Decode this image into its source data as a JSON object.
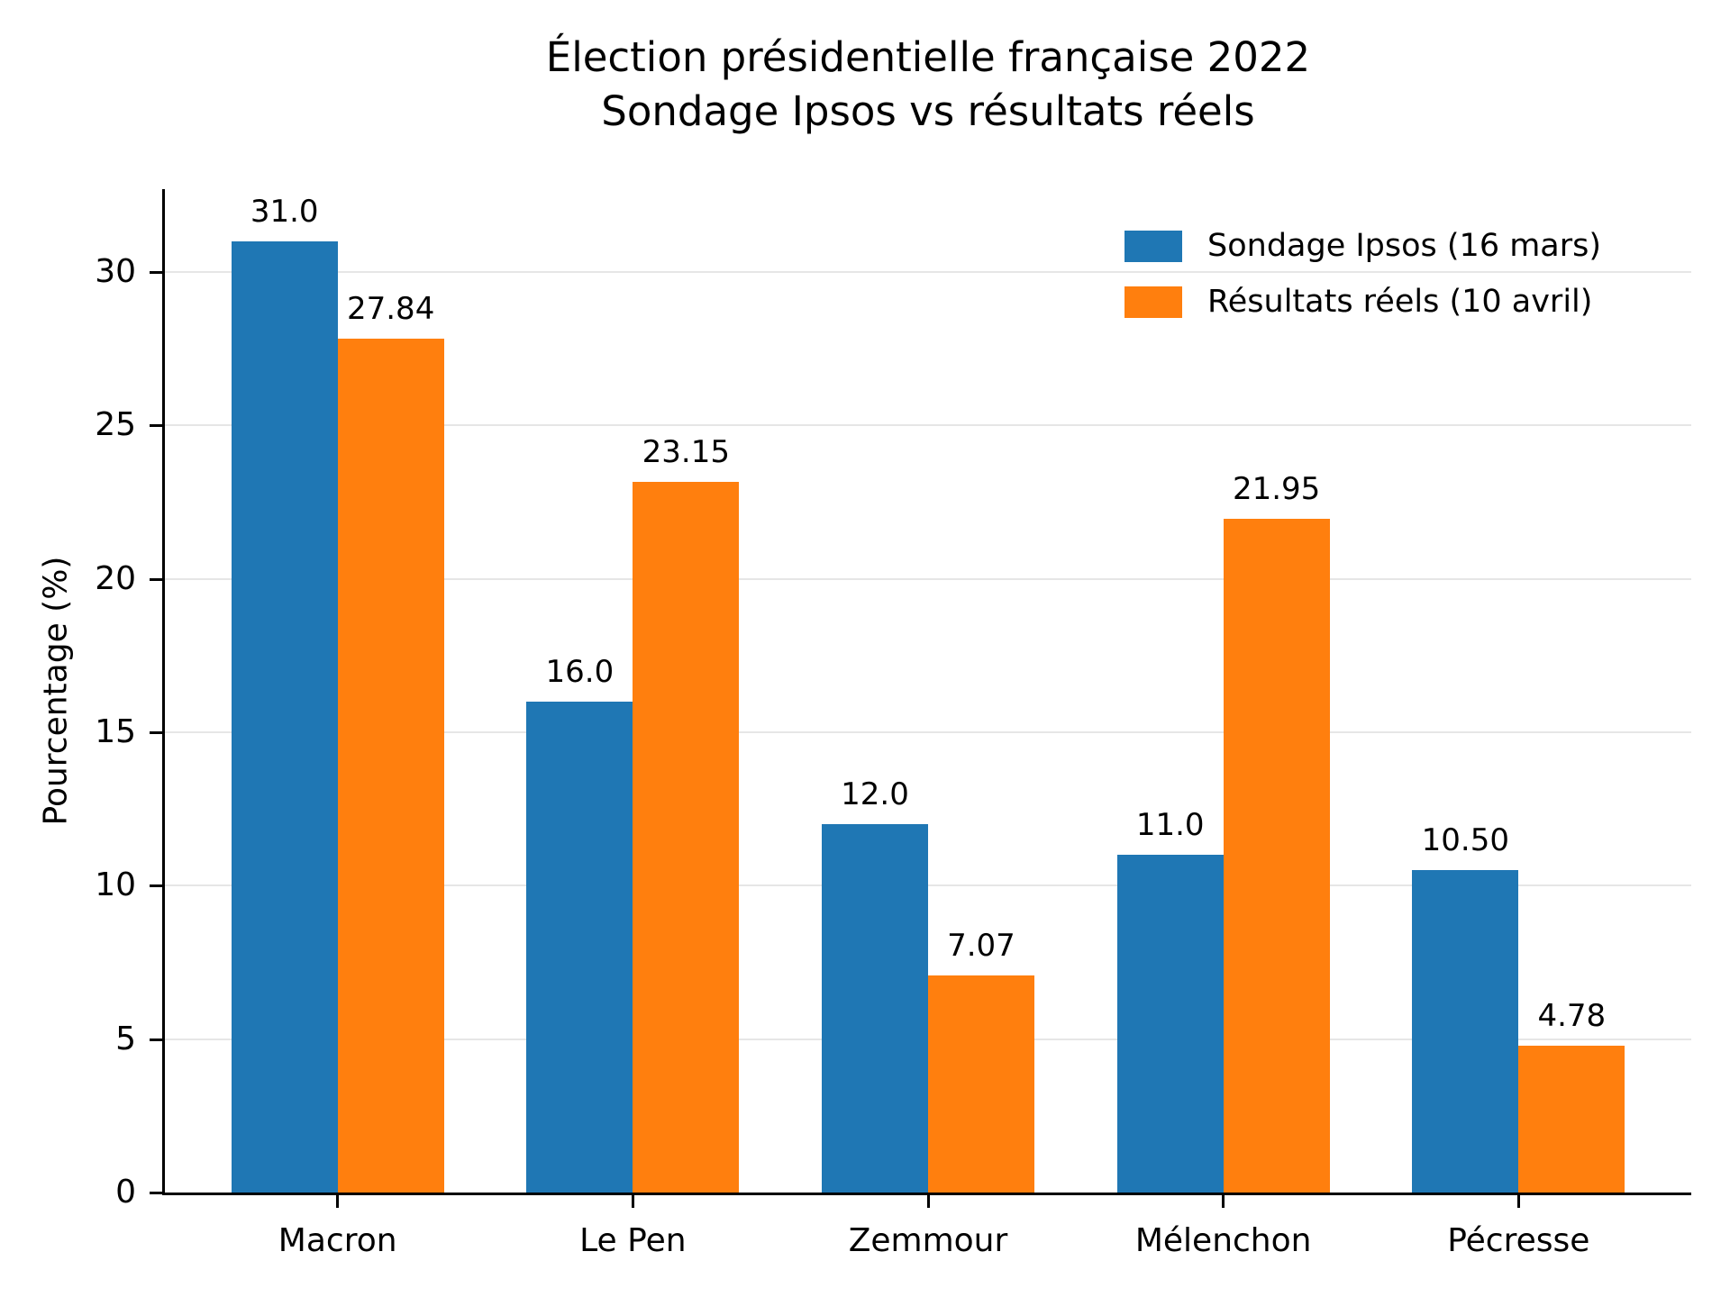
{
  "title": {
    "line1": "Élection présidentielle française 2022",
    "line2": "Sondage Ipsos vs résultats réels"
  },
  "ylabel": "Pourcentage (%)",
  "legend": [
    {
      "label": "Sondage Ipsos (16 mars)",
      "color": "#1f77b4"
    },
    {
      "label": "Résultats réels (10 avril)",
      "color": "#ff7f0e"
    }
  ],
  "colors": {
    "series_blue": "#1f77b4",
    "series_orange": "#ff7f0e",
    "gridline": "#e6e6e6",
    "axis": "#000000"
  },
  "chart_data": {
    "type": "bar",
    "title": "Élection présidentielle française 2022\nSondage Ipsos vs résultats réels",
    "xlabel": "",
    "ylabel": "Pourcentage (%)",
    "categories": [
      "Macron",
      "Le Pen",
      "Zemmour",
      "Mélenchon",
      "Pécresse"
    ],
    "series": [
      {
        "name": "Sondage Ipsos (16 mars)",
        "color": "#1f77b4",
        "values": [
          31.0,
          16.0,
          12.0,
          11.0,
          10.5
        ],
        "value_labels": [
          "31.0",
          "16.0",
          "12.0",
          "11.0",
          "10.50"
        ]
      },
      {
        "name": "Résultats réels (10 avril)",
        "color": "#ff7f0e",
        "values": [
          27.84,
          23.15,
          7.07,
          21.95,
          4.78
        ],
        "value_labels": [
          "27.84",
          "23.15",
          "7.07",
          "21.95",
          "4.78"
        ]
      }
    ],
    "yticks": [
      0,
      5,
      10,
      15,
      20,
      25,
      30
    ],
    "ytick_labels": [
      "0",
      "5",
      "10",
      "15",
      "20",
      "25",
      "30"
    ],
    "ylim": [
      0,
      32.7
    ],
    "grid": "horizontal",
    "legend_position": "upper right",
    "bar_width_ratio": 0.36
  }
}
